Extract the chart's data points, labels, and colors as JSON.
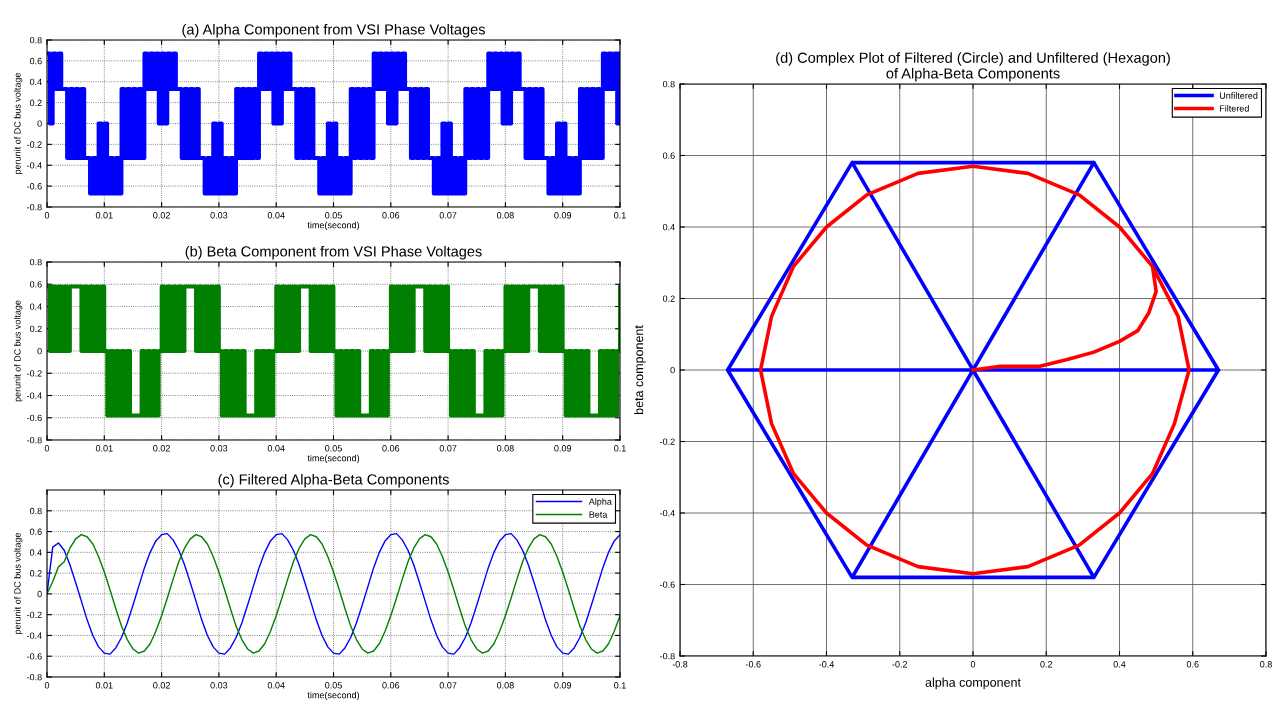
{
  "chart_data": [
    {
      "type": "step",
      "title": "(a) Alpha Component from VSI Phase Voltages",
      "xlabel": "time(second)",
      "ylabel": "perunit of DC bus voltage",
      "x": [
        0,
        0.0005,
        0.001,
        0.0015,
        0.002,
        0.0025,
        0.003,
        0.0035,
        0.004,
        0.0045,
        0.005,
        0.0055,
        0.006,
        0.0065,
        0.007,
        0.0075,
        0.008,
        0.0085,
        0.009,
        0.0095,
        0.01,
        0.0105,
        0.011,
        0.0115,
        0.012,
        0.0125,
        0.013,
        0.0135,
        0.014,
        0.0145,
        0.015,
        0.0155,
        0.016,
        0.0165,
        0.017,
        0.0175,
        0.018,
        0.0185,
        0.019,
        0.0195,
        0.02,
        0.0205,
        0.021,
        0.0215,
        0.022,
        0.0225,
        0.023,
        0.0235,
        0.024,
        0.0245,
        0.025,
        0.0255,
        0.026,
        0.0265,
        0.027,
        0.0275,
        0.028,
        0.0285,
        0.029,
        0.0295,
        0.03,
        0.0305,
        0.031,
        0.0315,
        0.032,
        0.0325,
        0.033,
        0.0335,
        0.034,
        0.0345,
        0.035,
        0.0355,
        0.036,
        0.0365,
        0.037,
        0.0375,
        0.038,
        0.0385,
        0.039,
        0.0395,
        0.04,
        0.0405,
        0.041,
        0.0415,
        0.042,
        0.0425,
        0.043,
        0.0435,
        0.044,
        0.0445,
        0.045,
        0.0455,
        0.046,
        0.0465,
        0.047,
        0.0475,
        0.048,
        0.0485,
        0.049,
        0.0495,
        0.05,
        0.0505,
        0.051,
        0.0515,
        0.052,
        0.0525,
        0.053,
        0.0535,
        0.054,
        0.0545,
        0.055,
        0.0555,
        0.056,
        0.0565,
        0.057,
        0.0575,
        0.058,
        0.0585,
        0.059,
        0.0595,
        0.06,
        0.0605,
        0.061,
        0.0615,
        0.062,
        0.0625,
        0.063,
        0.0635,
        0.064,
        0.0645,
        0.065,
        0.0655,
        0.066,
        0.0665,
        0.067,
        0.0675,
        0.068,
        0.0685,
        0.069,
        0.0695,
        0.07,
        0.0705,
        0.071,
        0.0715,
        0.072,
        0.0725,
        0.073,
        0.0735,
        0.074,
        0.0745,
        0.075,
        0.0755,
        0.076,
        0.0765,
        0.077,
        0.0775,
        0.078,
        0.0785,
        0.079,
        0.0795,
        0.08,
        0.0805,
        0.081,
        0.0815,
        0.082,
        0.0825,
        0.083,
        0.0835,
        0.084,
        0.0845,
        0.085,
        0.0855,
        0.086,
        0.0865,
        0.087,
        0.0875,
        0.088,
        0.0885,
        0.089,
        0.0895,
        0.09,
        0.0905,
        0.091,
        0.0915,
        0.092,
        0.0925,
        0.093,
        0.0935,
        0.094,
        0.0945,
        0.095,
        0.0955,
        0.096,
        0.0965,
        0.097,
        0.0975,
        0.098,
        0.0985,
        0.099,
        0.0995,
        0.1
      ],
      "series": [
        {
          "color": "#0000ff",
          "values": [
            0.67,
            0,
            0.67,
            0.33,
            0.67,
            0.33,
            0.33,
            -0.33,
            0.33,
            -0.33,
            0.33,
            -0.33,
            0.33,
            -0.33,
            -0.33,
            -0.67,
            -0.33,
            -0.67,
            0,
            -0.67,
            0,
            -0.67,
            -0.33,
            -0.67,
            -0.33,
            -0.67,
            0.33,
            -0.33,
            0.33,
            -0.33,
            0.33,
            -0.33,
            0.33,
            -0.33,
            0.67,
            0.33,
            0.67,
            0.33,
            0.67,
            0,
            0.67,
            0,
            0.67,
            0.33,
            0.67,
            0.33,
            0.33,
            -0.33,
            0.33,
            -0.33,
            0.33,
            -0.33,
            0.33,
            -0.33,
            -0.33,
            -0.67,
            -0.33,
            -0.67,
            0,
            -0.67,
            0,
            -0.67,
            -0.33,
            -0.67,
            -0.33,
            -0.67,
            0.33,
            -0.33,
            0.33,
            -0.33,
            0.33,
            -0.33,
            0.33,
            -0.33,
            0.67,
            0.33,
            0.67,
            0.33,
            0.67,
            0,
            0.67,
            0,
            0.67,
            0.33,
            0.67,
            0.33,
            0.33,
            -0.33,
            0.33,
            -0.33,
            0.33,
            -0.33,
            0.33,
            -0.33,
            -0.33,
            -0.67,
            -0.33,
            -0.67,
            0,
            -0.67,
            0,
            -0.67,
            -0.33,
            -0.67,
            -0.33,
            -0.67,
            0.33,
            -0.33,
            0.33,
            -0.33,
            0.33,
            -0.33,
            0.33,
            -0.33,
            0.67,
            0.33,
            0.67,
            0.33,
            0.67,
            0,
            0.67,
            0,
            0.67,
            0.33,
            0.67,
            0.33,
            0.33,
            -0.33,
            0.33,
            -0.33,
            0.33,
            -0.33,
            0.33,
            -0.33,
            -0.33,
            -0.67,
            -0.33,
            -0.67,
            0,
            -0.67,
            0,
            -0.67,
            -0.33,
            -0.67,
            -0.33,
            -0.67,
            0.33,
            -0.33,
            0.33,
            -0.33,
            0.33,
            -0.33,
            0.33,
            -0.33,
            0.67,
            0.33,
            0.67,
            0.33,
            0.67,
            0,
            0.67,
            0,
            0.67,
            0.33,
            0.67,
            0.33,
            0.33,
            -0.33,
            0.33,
            -0.33,
            0.33,
            -0.33,
            0.33,
            -0.33,
            -0.33,
            -0.67,
            -0.33,
            -0.67,
            0,
            -0.67,
            0,
            -0.67,
            -0.33,
            -0.67,
            -0.33,
            -0.67,
            0.33,
            -0.33,
            0.33,
            -0.33,
            0.33,
            -0.33,
            0.33,
            -0.33,
            0.67,
            0.33,
            0.67,
            0.33,
            0.67,
            0,
            0.67
          ]
        }
      ],
      "xlim": [
        0,
        0.1
      ],
      "ylim": [
        -0.8,
        0.8
      ],
      "xticks": [
        0,
        0.01,
        0.02,
        0.03,
        0.04,
        0.05,
        0.06,
        0.07,
        0.08,
        0.09,
        0.1
      ],
      "yticks": [
        -0.8,
        -0.6,
        -0.4,
        -0.2,
        0,
        0.2,
        0.4,
        0.6,
        0.8
      ],
      "grid": true
    },
    {
      "type": "step",
      "title": "(b) Beta Component from VSI Phase Voltages",
      "xlabel": "time(second)",
      "ylabel": "perunit of DC bus voltage",
      "x": [
        0,
        0.0005,
        0.001,
        0.0015,
        0.002,
        0.0025,
        0.003,
        0.0035,
        0.004,
        0.0045,
        0.005,
        0.0055,
        0.006,
        0.0065,
        0.007,
        0.0075,
        0.008,
        0.0085,
        0.009,
        0.0095,
        0.01,
        0.0105,
        0.011,
        0.0115,
        0.012,
        0.0125,
        0.013,
        0.0135,
        0.014,
        0.0145,
        0.015,
        0.0155,
        0.016,
        0.0165,
        0.017,
        0.0175,
        0.018,
        0.0185,
        0.019,
        0.0195,
        0.02,
        0.0205,
        0.021,
        0.0215,
        0.022,
        0.0225,
        0.023,
        0.0235,
        0.024,
        0.0245,
        0.025,
        0.0255,
        0.026,
        0.0265,
        0.027,
        0.0275,
        0.028,
        0.0285,
        0.029,
        0.0295,
        0.03,
        0.0305,
        0.031,
        0.0315,
        0.032,
        0.0325,
        0.033,
        0.0335,
        0.034,
        0.0345,
        0.035,
        0.0355,
        0.036,
        0.0365,
        0.037,
        0.0375,
        0.038,
        0.0385,
        0.039,
        0.0395,
        0.04,
        0.0405,
        0.041,
        0.0415,
        0.042,
        0.0425,
        0.043,
        0.0435,
        0.044,
        0.0445,
        0.045,
        0.0455,
        0.046,
        0.0465,
        0.047,
        0.0475,
        0.048,
        0.0485,
        0.049,
        0.0495,
        0.05,
        0.0505,
        0.051,
        0.0515,
        0.052,
        0.0525,
        0.053,
        0.0535,
        0.054,
        0.0545,
        0.055,
        0.0555,
        0.056,
        0.0565,
        0.057,
        0.0575,
        0.058,
        0.0585,
        0.059,
        0.0595,
        0.06,
        0.0605,
        0.061,
        0.0615,
        0.062,
        0.0625,
        0.063,
        0.0635,
        0.064,
        0.0645,
        0.065,
        0.0655,
        0.066,
        0.0665,
        0.067,
        0.0675,
        0.068,
        0.0685,
        0.069,
        0.0695,
        0.07,
        0.0705,
        0.071,
        0.0715,
        0.072,
        0.0725,
        0.073,
        0.0735,
        0.074,
        0.0745,
        0.075,
        0.0755,
        0.076,
        0.0765,
        0.077,
        0.0775,
        0.078,
        0.0785,
        0.079,
        0.0795,
        0.08,
        0.0805,
        0.081,
        0.0815,
        0.082,
        0.0825,
        0.083,
        0.0835,
        0.084,
        0.0845,
        0.085,
        0.0855,
        0.086,
        0.0865,
        0.087,
        0.0875,
        0.088,
        0.0885,
        0.089,
        0.0895,
        0.09,
        0.0905,
        0.091,
        0.0915,
        0.092,
        0.0925,
        0.093,
        0.0935,
        0.094,
        0.0945,
        0.095,
        0.0955,
        0.096,
        0.0965,
        0.097,
        0.0975,
        0.098,
        0.0985,
        0.099,
        0.0995,
        0.1
      ],
      "series": [
        {
          "color": "#007f00",
          "values": [
            0.58,
            0,
            0.58,
            0,
            0.58,
            0,
            0.58,
            0,
            0.58,
            0.58,
            0.58,
            0.58,
            0,
            0.58,
            0,
            0.58,
            0,
            0.58,
            0,
            0.58,
            0,
            -0.58,
            0,
            -0.58,
            0,
            -0.58,
            0,
            -0.58,
            0,
            -0.58,
            -0.58,
            -0.58,
            -0.58,
            0,
            -0.58,
            0,
            -0.58,
            0,
            -0.58,
            0,
            0.58,
            0,
            0.58,
            0,
            0.58,
            0,
            0.58,
            0,
            0.58,
            0.58,
            0.58,
            0.58,
            0,
            0.58,
            0,
            0.58,
            0,
            0.58,
            0,
            0.58,
            0,
            -0.58,
            0,
            -0.58,
            0,
            -0.58,
            0,
            -0.58,
            0,
            -0.58,
            -0.58,
            -0.58,
            -0.58,
            0,
            -0.58,
            0,
            -0.58,
            0,
            -0.58,
            0,
            0.58,
            0,
            0.58,
            0,
            0.58,
            0,
            0.58,
            0,
            0.58,
            0.58,
            0.58,
            0.58,
            0,
            0.58,
            0,
            0.58,
            0,
            0.58,
            0,
            0.58,
            0,
            -0.58,
            0,
            -0.58,
            0,
            -0.58,
            0,
            -0.58,
            0,
            -0.58,
            -0.58,
            -0.58,
            -0.58,
            0,
            -0.58,
            0,
            -0.58,
            0,
            -0.58,
            0,
            0.58,
            0,
            0.58,
            0,
            0.58,
            0,
            0.58,
            0,
            0.58,
            0.58,
            0.58,
            0.58,
            0,
            0.58,
            0,
            0.58,
            0,
            0.58,
            0,
            0.58,
            0,
            -0.58,
            0,
            -0.58,
            0,
            -0.58,
            0,
            -0.58,
            0,
            -0.58,
            -0.58,
            -0.58,
            -0.58,
            0,
            -0.58,
            0,
            -0.58,
            0,
            -0.58,
            0,
            0.58,
            0,
            0.58,
            0,
            0.58,
            0,
            0.58,
            0,
            0.58,
            0.58,
            0.58,
            0.58,
            0,
            0.58,
            0,
            0.58,
            0,
            0.58,
            0,
            0.58,
            0,
            -0.58,
            0,
            -0.58,
            0,
            -0.58,
            0,
            -0.58,
            0,
            -0.58,
            -0.58,
            -0.58,
            -0.58,
            0,
            -0.58,
            0,
            -0.58,
            0,
            -0.58,
            0,
            0.58
          ]
        }
      ],
      "xlim": [
        0,
        0.1
      ],
      "ylim": [
        -0.8,
        0.8
      ],
      "xticks": [
        0,
        0.01,
        0.02,
        0.03,
        0.04,
        0.05,
        0.06,
        0.07,
        0.08,
        0.09,
        0.1
      ],
      "yticks": [
        -0.8,
        -0.6,
        -0.4,
        -0.2,
        0,
        0.2,
        0.4,
        0.6,
        0.8
      ],
      "grid": true
    },
    {
      "type": "line",
      "title": "(c) Filtered Alpha-Beta Components",
      "xlabel": "time(second)",
      "ylabel": "perunit of DC bus voltage",
      "x": [
        0,
        0.001,
        0.002,
        0.003,
        0.004,
        0.005,
        0.006,
        0.007,
        0.008,
        0.009,
        0.01,
        0.011,
        0.012,
        0.013,
        0.014,
        0.015,
        0.016,
        0.017,
        0.018,
        0.019,
        0.02,
        0.021,
        0.022,
        0.023,
        0.024,
        0.025,
        0.026,
        0.027,
        0.028,
        0.029,
        0.03,
        0.031,
        0.032,
        0.033,
        0.034,
        0.035,
        0.036,
        0.037,
        0.038,
        0.039,
        0.04,
        0.041,
        0.042,
        0.043,
        0.044,
        0.045,
        0.046,
        0.047,
        0.048,
        0.049,
        0.05,
        0.051,
        0.052,
        0.053,
        0.054,
        0.055,
        0.056,
        0.057,
        0.058,
        0.059,
        0.06,
        0.061,
        0.062,
        0.063,
        0.064,
        0.065,
        0.066,
        0.067,
        0.068,
        0.069,
        0.07,
        0.071,
        0.072,
        0.073,
        0.074,
        0.075,
        0.076,
        0.077,
        0.078,
        0.079,
        0.08,
        0.081,
        0.082,
        0.083,
        0.084,
        0.085,
        0.086,
        0.087,
        0.088,
        0.089,
        0.09,
        0.091,
        0.092,
        0.093,
        0.094,
        0.095,
        0.096,
        0.097,
        0.098,
        0.099,
        0.1
      ],
      "series": [
        {
          "name": "Alpha",
          "color": "#0000ff",
          "values": [
            0,
            0.45,
            0.49,
            0.42,
            0.28,
            0.11,
            -0.07,
            -0.25,
            -0.4,
            -0.51,
            -0.57,
            -0.58,
            -0.52,
            -0.42,
            -0.28,
            -0.11,
            0.07,
            0.25,
            0.4,
            0.51,
            0.57,
            0.58,
            0.52,
            0.42,
            0.28,
            0.11,
            -0.07,
            -0.25,
            -0.4,
            -0.51,
            -0.57,
            -0.58,
            -0.52,
            -0.42,
            -0.28,
            -0.11,
            0.07,
            0.25,
            0.4,
            0.51,
            0.57,
            0.58,
            0.52,
            0.42,
            0.28,
            0.11,
            -0.07,
            -0.25,
            -0.4,
            -0.51,
            -0.57,
            -0.58,
            -0.52,
            -0.42,
            -0.28,
            -0.11,
            0.07,
            0.25,
            0.4,
            0.51,
            0.57,
            0.58,
            0.52,
            0.42,
            0.28,
            0.11,
            -0.07,
            -0.25,
            -0.4,
            -0.51,
            -0.57,
            -0.58,
            -0.52,
            -0.42,
            -0.28,
            -0.11,
            0.07,
            0.25,
            0.4,
            0.51,
            0.57,
            0.58,
            0.52,
            0.42,
            0.28,
            0.11,
            -0.07,
            -0.25,
            -0.4,
            -0.51,
            -0.57,
            -0.58,
            -0.52,
            -0.42,
            -0.28,
            -0.11,
            0.07,
            0.25,
            0.4,
            0.51,
            0.57
          ]
        },
        {
          "name": "Beta",
          "color": "#007f00",
          "values": [
            0,
            0.12,
            0.26,
            0.31,
            0.44,
            0.53,
            0.57,
            0.55,
            0.48,
            0.36,
            0.21,
            0.04,
            -0.14,
            -0.31,
            -0.44,
            -0.53,
            -0.57,
            -0.55,
            -0.48,
            -0.36,
            -0.21,
            -0.04,
            0.14,
            0.31,
            0.44,
            0.53,
            0.57,
            0.55,
            0.48,
            0.36,
            0.21,
            0.04,
            -0.14,
            -0.31,
            -0.44,
            -0.53,
            -0.57,
            -0.55,
            -0.48,
            -0.36,
            -0.21,
            -0.04,
            0.14,
            0.31,
            0.44,
            0.53,
            0.57,
            0.55,
            0.48,
            0.36,
            0.21,
            0.04,
            -0.14,
            -0.31,
            -0.44,
            -0.53,
            -0.57,
            -0.55,
            -0.48,
            -0.36,
            -0.21,
            -0.04,
            0.14,
            0.31,
            0.44,
            0.53,
            0.57,
            0.55,
            0.48,
            0.36,
            0.21,
            0.04,
            -0.14,
            -0.31,
            -0.44,
            -0.53,
            -0.57,
            -0.55,
            -0.48,
            -0.36,
            -0.21,
            -0.04,
            0.14,
            0.31,
            0.44,
            0.53,
            0.57,
            0.55,
            0.48,
            0.36,
            0.21,
            0.04,
            -0.14,
            -0.31,
            -0.44,
            -0.53,
            -0.57,
            -0.55,
            -0.48,
            -0.36,
            -0.21
          ]
        }
      ],
      "xlim": [
        0,
        0.1
      ],
      "ylim": [
        -0.8,
        1
      ],
      "xticks": [
        0,
        0.01,
        0.02,
        0.03,
        0.04,
        0.05,
        0.06,
        0.07,
        0.08,
        0.09,
        0.1
      ],
      "yticks": [
        -0.8,
        -0.6,
        -0.4,
        -0.2,
        0,
        0.2,
        0.4,
        0.6,
        0.8
      ],
      "grid": true,
      "legend": "top right"
    },
    {
      "type": "line",
      "title": "(d) Complex Plot of Filtered (Circle) and Unfiltered (Hexagon)\nof Alpha-Beta Components",
      "xlabel": "alpha component",
      "ylabel": "beta component",
      "series": [
        {
          "name": "Unfiltered",
          "color": "#0000ff",
          "x": [
            0.67,
            0.33,
            -0.33,
            -0.67,
            -0.33,
            0.33,
            0.67,
            -0.67,
            -0.33,
            0.33,
            -0.33,
            0.33
          ],
          "values": [
            0,
            0.58,
            0.58,
            0,
            -0.58,
            -0.58,
            0,
            0,
            0.58,
            -0.58,
            -0.58,
            0.58
          ]
        },
        {
          "name": "Filtered",
          "color": "#ff0000",
          "x": [
            0,
            0.07,
            0.18,
            0.26,
            0.33,
            0.4,
            0.45,
            0.48,
            0.5,
            0.49,
            0.4,
            0.29,
            0.15,
            0,
            -0.15,
            -0.29,
            -0.4,
            -0.49,
            -0.55,
            -0.58,
            -0.55,
            -0.49,
            -0.4,
            -0.29,
            -0.15,
            0,
            0.15,
            0.29,
            0.4,
            0.49,
            0.55,
            0.59,
            0.56,
            0.49,
            0.4
          ],
          "values": [
            0,
            0.01,
            0.01,
            0.03,
            0.05,
            0.08,
            0.11,
            0.16,
            0.22,
            0.29,
            0.4,
            0.49,
            0.55,
            0.57,
            0.55,
            0.49,
            0.4,
            0.29,
            0.15,
            0,
            -0.15,
            -0.29,
            -0.4,
            -0.49,
            -0.55,
            -0.57,
            -0.55,
            -0.49,
            -0.4,
            -0.29,
            -0.15,
            0,
            0.15,
            0.29,
            0.4
          ]
        }
      ],
      "xlim": [
        -0.8,
        0.8
      ],
      "ylim": [
        -0.8,
        0.8
      ],
      "xticks": [
        -0.8,
        -0.6,
        -0.4,
        -0.2,
        0,
        0.2,
        0.4,
        0.6,
        0.8
      ],
      "yticks": [
        -0.8,
        -0.6,
        -0.4,
        -0.2,
        0,
        0.2,
        0.4,
        0.6,
        0.8
      ],
      "grid": true,
      "legend": "top right"
    }
  ]
}
